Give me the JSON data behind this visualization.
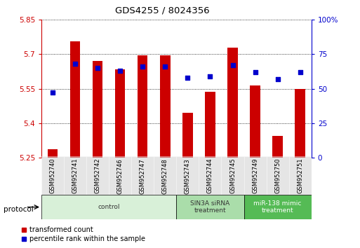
{
  "title": "GDS4255 / 8024356",
  "samples": [
    "GSM952740",
    "GSM952741",
    "GSM952742",
    "GSM952746",
    "GSM952747",
    "GSM952748",
    "GSM952743",
    "GSM952744",
    "GSM952745",
    "GSM952749",
    "GSM952750",
    "GSM952751"
  ],
  "bar_values": [
    5.285,
    5.755,
    5.67,
    5.635,
    5.695,
    5.695,
    5.445,
    5.535,
    5.73,
    5.565,
    5.345,
    5.55
  ],
  "bar_base": 5.25,
  "percentile_values": [
    47,
    68,
    65,
    63,
    66,
    66,
    58,
    59,
    67,
    62,
    57,
    62
  ],
  "ylim_left": [
    5.25,
    5.85
  ],
  "ylim_right": [
    0,
    100
  ],
  "yticks_left": [
    5.25,
    5.4,
    5.55,
    5.7,
    5.85
  ],
  "yticks_right": [
    0,
    25,
    50,
    75,
    100
  ],
  "ytick_labels_left": [
    "5.25",
    "5.4",
    "5.55",
    "5.7",
    "5.85"
  ],
  "ytick_labels_right": [
    "0",
    "25",
    "50",
    "75",
    "100%"
  ],
  "groups": [
    {
      "label": "control",
      "start": 0,
      "end": 6,
      "color": "#d8f0d8",
      "text_color": "#333333"
    },
    {
      "label": "SIN3A siRNA\ntreatment",
      "start": 6,
      "end": 9,
      "color": "#aaddaa",
      "text_color": "#333333"
    },
    {
      "label": "miR-138 mimic\ntreatment",
      "start": 9,
      "end": 12,
      "color": "#55bb55",
      "text_color": "#ffffff"
    }
  ],
  "bar_color": "#cc0000",
  "dot_color": "#0000cc",
  "left_axis_color": "#cc0000",
  "right_axis_color": "#0000cc",
  "legend_red_label": "transformed count",
  "legend_blue_label": "percentile rank within the sample",
  "protocol_label": "protocol"
}
